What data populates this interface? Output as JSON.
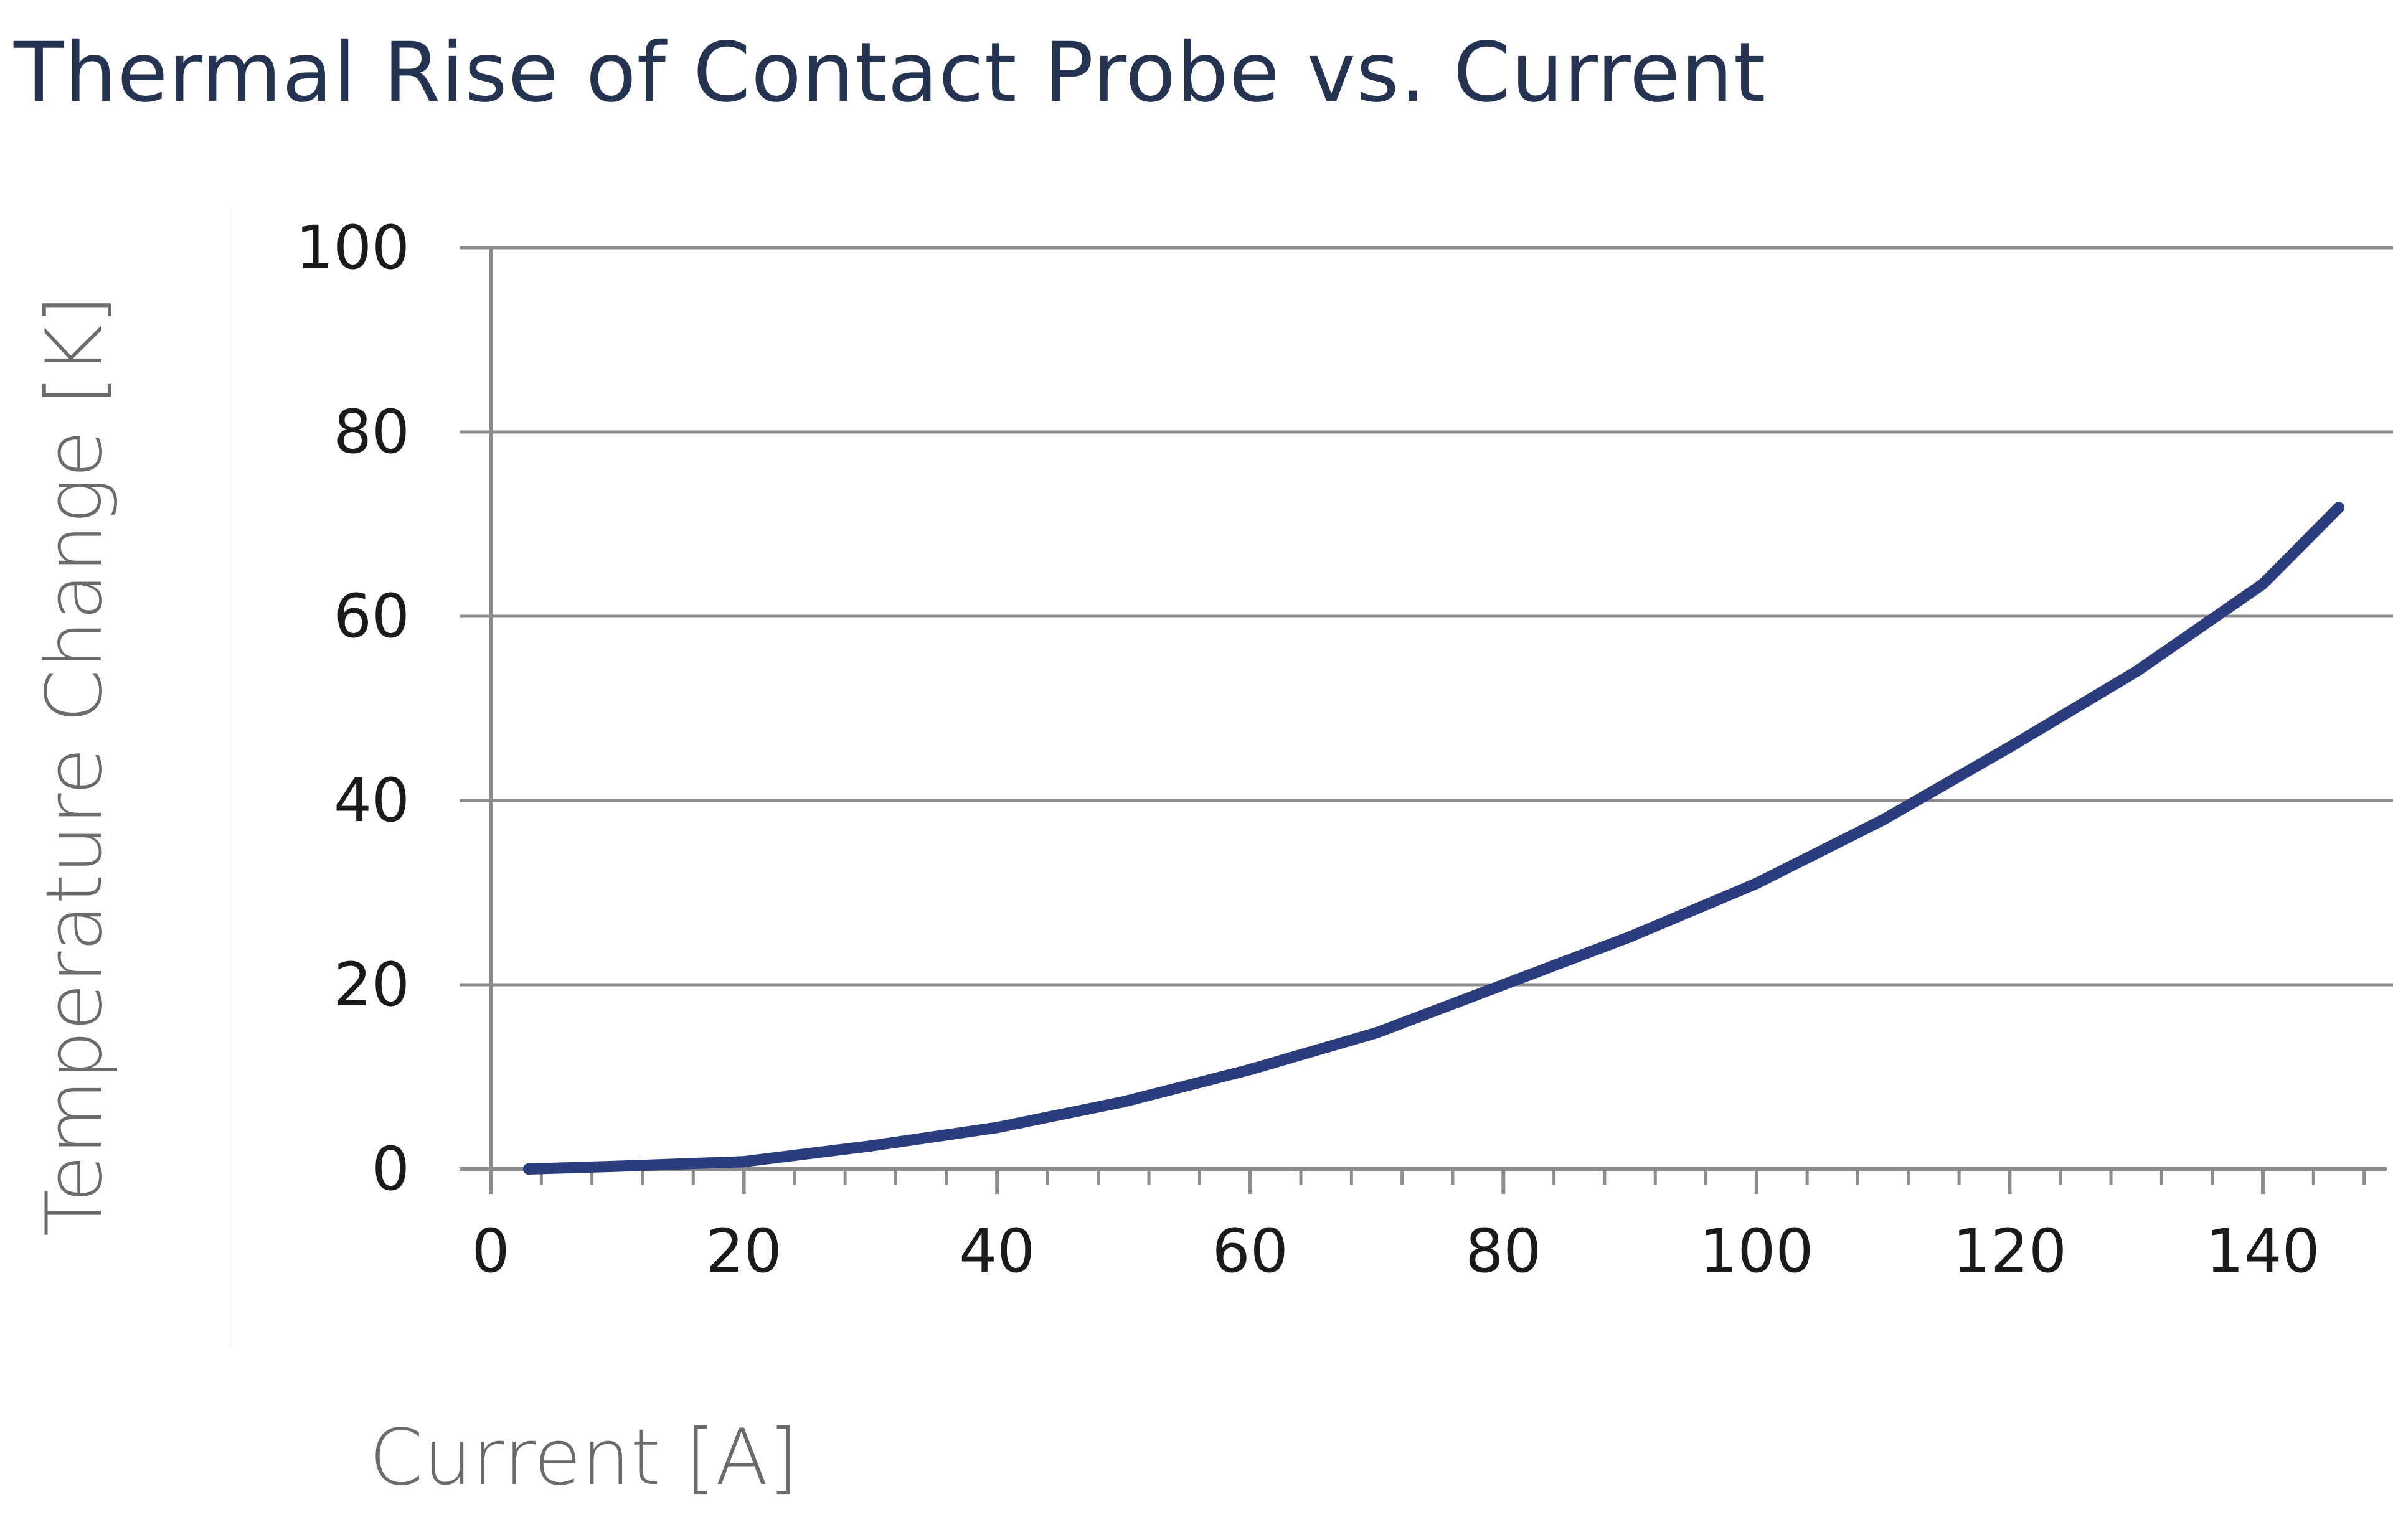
{
  "chart_data": {
    "type": "line",
    "title": "Thermal Rise of Contact Probe vs. Current",
    "xlabel": "Current [A]",
    "ylabel": "Temperature Change [K]",
    "xlim": [
      0,
      150
    ],
    "ylim": [
      0,
      100
    ],
    "x_ticks": [
      "0",
      "20",
      "40",
      "60",
      "80",
      "100",
      "120",
      "140"
    ],
    "y_ticks": [
      "0",
      "20",
      "40",
      "60",
      "80",
      "100"
    ],
    "grid": "horizontal",
    "legend": "none",
    "series": [
      {
        "color": "#2b3d7e",
        "x": [
          3,
          10,
          20,
          30,
          40,
          50,
          60,
          70,
          80,
          90,
          100,
          110,
          120,
          130,
          140,
          146
        ],
        "y": [
          0,
          0.3,
          0.8,
          2.5,
          4.5,
          7.3,
          10.8,
          14.8,
          20,
          25.2,
          31,
          37.9,
          45.8,
          54,
          63.5,
          71.8
        ]
      }
    ],
    "colors": {
      "title": "#253352",
      "axis_title": "#6b6b6b",
      "gridline": "#8c8c8c",
      "line": "#2b3d7e"
    }
  }
}
